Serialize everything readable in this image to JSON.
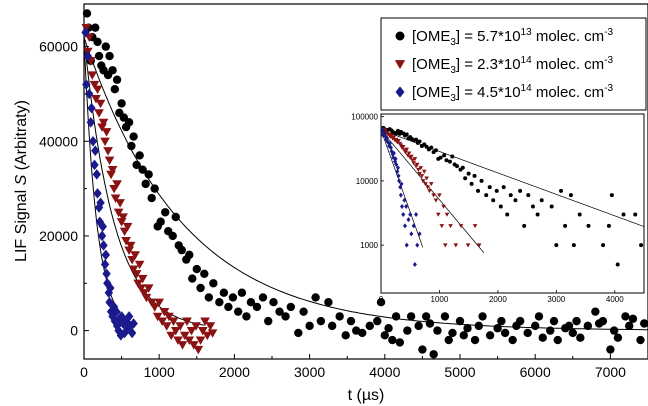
{
  "chart_data": {
    "type": "scatter",
    "xlabel": "t (µs)",
    "ylabel_prefix": "LIF Signal ",
    "ylabel_var": "S",
    "ylabel_suffix": " (Arbitraty)",
    "xlim": [
      0,
      7500
    ],
    "ylim": [
      -6000,
      69000
    ],
    "xticks": [
      0,
      1000,
      2000,
      3000,
      4000,
      5000,
      6000,
      7000
    ],
    "yticks": [
      0,
      20000,
      40000,
      60000
    ],
    "legend_position": "top-right",
    "series": [
      {
        "name_main": "[OME",
        "name_sub": "3",
        "name_mid": "] = 5.7*10",
        "name_sup": "13",
        "name_unit": " molec. cm",
        "name_unit_sup": "-3",
        "marker": "circle",
        "color": "#000000",
        "fit": {
          "A": 62000,
          "tau": 1300,
          "xmax": 7500
        },
        "points": [
          [
            40,
            67000
          ],
          [
            60,
            64000
          ],
          [
            90,
            57000
          ],
          [
            110,
            62000
          ],
          [
            150,
            64000
          ],
          [
            180,
            61000
          ],
          [
            200,
            58000
          ],
          [
            230,
            56000
          ],
          [
            260,
            55000
          ],
          [
            290,
            60000
          ],
          [
            320,
            54000
          ],
          [
            340,
            58000
          ],
          [
            380,
            55000
          ],
          [
            410,
            51000
          ],
          [
            440,
            53000
          ],
          [
            470,
            46000
          ],
          [
            500,
            48000
          ],
          [
            530,
            45000
          ],
          [
            560,
            43000
          ],
          [
            600,
            44000
          ],
          [
            630,
            39000
          ],
          [
            660,
            41000
          ],
          [
            700,
            35000
          ],
          [
            740,
            37000
          ],
          [
            780,
            34000
          ],
          [
            820,
            31000
          ],
          [
            860,
            33000
          ],
          [
            900,
            28000
          ],
          [
            940,
            30000
          ],
          [
            980,
            22000
          ],
          [
            1020,
            23000
          ],
          [
            1080,
            25000
          ],
          [
            1120,
            21000
          ],
          [
            1180,
            20000
          ],
          [
            1220,
            24000
          ],
          [
            1260,
            18000
          ],
          [
            1300,
            17000
          ],
          [
            1360,
            15000
          ],
          [
            1400,
            16000
          ],
          [
            1440,
            11000
          ],
          [
            1500,
            13000
          ],
          [
            1550,
            9000
          ],
          [
            1600,
            12000
          ],
          [
            1660,
            7000
          ],
          [
            1720,
            10000
          ],
          [
            1800,
            6000
          ],
          [
            1860,
            8000
          ],
          [
            1920,
            5000
          ],
          [
            1980,
            7000
          ],
          [
            2050,
            4000
          ],
          [
            2100,
            8000
          ],
          [
            2160,
            3000
          ],
          [
            2220,
            6000
          ],
          [
            2300,
            5000
          ],
          [
            2380,
            7000
          ],
          [
            2450,
            2000
          ],
          [
            2520,
            6000
          ],
          [
            2600,
            4000
          ],
          [
            2680,
            3000
          ],
          [
            2750,
            5000
          ],
          [
            2850,
            -500
          ],
          [
            2920,
            4000
          ],
          [
            3000,
            1000
          ],
          [
            3080,
            7000
          ],
          [
            3150,
            2000
          ],
          [
            3250,
            6000
          ],
          [
            3300,
            1000
          ],
          [
            3400,
            3000
          ],
          [
            3480,
            -1000
          ],
          [
            3550,
            2000
          ],
          [
            3620,
            0
          ],
          [
            3700,
            -500
          ],
          [
            3800,
            1000
          ],
          [
            3900,
            2000
          ],
          [
            3950,
            6000
          ],
          [
            4000,
            -1000
          ],
          [
            4050,
            500
          ],
          [
            4100,
            -2000
          ],
          [
            4150,
            3000
          ],
          [
            4200,
            -2500
          ],
          [
            4300,
            0
          ],
          [
            4350,
            3000
          ],
          [
            4450,
            1000
          ],
          [
            4500,
            -4000
          ],
          [
            4550,
            3000
          ],
          [
            4600,
            1500
          ],
          [
            4650,
            -5000
          ],
          [
            4700,
            0
          ],
          [
            4800,
            3000
          ],
          [
            4850,
            -2000
          ],
          [
            4900,
            -500
          ],
          [
            5000,
            2000
          ],
          [
            5050,
            -1000
          ],
          [
            5100,
            500
          ],
          [
            5200,
            -2000
          ],
          [
            5250,
            1000
          ],
          [
            5300,
            3000
          ],
          [
            5400,
            -1000
          ],
          [
            5500,
            500
          ],
          [
            5550,
            2000
          ],
          [
            5600,
            -500
          ],
          [
            5700,
            -2000
          ],
          [
            5750,
            1000
          ],
          [
            5800,
            2000
          ],
          [
            5900,
            -500
          ],
          [
            6000,
            1000
          ],
          [
            6050,
            3000
          ],
          [
            6100,
            -1500
          ],
          [
            6200,
            0
          ],
          [
            6250,
            2000
          ],
          [
            6300,
            -2000
          ],
          [
            6400,
            500
          ],
          [
            6450,
            1000
          ],
          [
            6500,
            -500
          ],
          [
            6550,
            2000
          ],
          [
            6600,
            -1500
          ],
          [
            6700,
            1000
          ],
          [
            6800,
            4000
          ],
          [
            6850,
            1500
          ],
          [
            6900,
            2000
          ],
          [
            7000,
            -4000
          ],
          [
            7050,
            0
          ],
          [
            7100,
            -1500
          ],
          [
            7200,
            3000
          ],
          [
            7250,
            1000
          ],
          [
            7300,
            2500
          ],
          [
            7400,
            -2000
          ],
          [
            7450,
            1500
          ]
        ]
      },
      {
        "name_main": "[OME",
        "name_sub": "3",
        "name_mid": "] = 2.3*10",
        "name_sup": "14",
        "name_unit": " molec. cm",
        "name_unit_sup": "-3",
        "marker": "triangle-down",
        "color": "#8b1212",
        "fit": {
          "A": 62000,
          "tau": 400,
          "xmax": 1600
        },
        "points": [
          [
            30,
            64000
          ],
          [
            50,
            59000
          ],
          [
            70,
            62000
          ],
          [
            90,
            57000
          ],
          [
            110,
            54000
          ],
          [
            140,
            52000
          ],
          [
            160,
            49000
          ],
          [
            180,
            51000
          ],
          [
            200,
            46000
          ],
          [
            220,
            48000
          ],
          [
            240,
            43000
          ],
          [
            260,
            44000
          ],
          [
            280,
            40000
          ],
          [
            300,
            42000
          ],
          [
            320,
            38000
          ],
          [
            340,
            36000
          ],
          [
            360,
            33000
          ],
          [
            380,
            34000
          ],
          [
            400,
            30000
          ],
          [
            420,
            28000
          ],
          [
            440,
            31000
          ],
          [
            460,
            25000
          ],
          [
            480,
            27000
          ],
          [
            500,
            23000
          ],
          [
            520,
            24000
          ],
          [
            540,
            21000
          ],
          [
            560,
            19000
          ],
          [
            580,
            22000
          ],
          [
            600,
            17000
          ],
          [
            620,
            18000
          ],
          [
            640,
            15000
          ],
          [
            660,
            13000
          ],
          [
            680,
            16000
          ],
          [
            700,
            12000
          ],
          [
            720,
            10000
          ],
          [
            740,
            14000
          ],
          [
            760,
            9000
          ],
          [
            780,
            11000
          ],
          [
            800,
            8000
          ],
          [
            830,
            7000
          ],
          [
            860,
            9000
          ],
          [
            900,
            6000
          ],
          [
            940,
            5000
          ],
          [
            980,
            3000
          ],
          [
            1000,
            6000
          ],
          [
            1040,
            2000
          ],
          [
            1070,
            4000
          ],
          [
            1100,
            1000
          ],
          [
            1130,
            3000
          ],
          [
            1160,
            -1000
          ],
          [
            1190,
            2000
          ],
          [
            1220,
            0
          ],
          [
            1250,
            -2000
          ],
          [
            1280,
            1000
          ],
          [
            1310,
            -3000
          ],
          [
            1340,
            -1000
          ],
          [
            1370,
            2000
          ],
          [
            1400,
            -2000
          ],
          [
            1430,
            0
          ],
          [
            1460,
            -3000
          ],
          [
            1490,
            1000
          ],
          [
            1520,
            -4000
          ],
          [
            1550,
            -2000
          ],
          [
            1580,
            0
          ],
          [
            1610,
            2000
          ],
          [
            1640,
            -1000
          ],
          [
            1680,
            1000
          ],
          [
            1710,
            -500
          ]
        ]
      },
      {
        "name_main": "[OME",
        "name_sub": "3",
        "name_mid": "] = 4.5*10",
        "name_sup": "14",
        "name_unit": " molec. cm",
        "name_unit_sup": "-3",
        "marker": "diamond",
        "color": "#1a1a8c",
        "fit": {
          "A": 62000,
          "tau": 170,
          "xmax": 650
        },
        "points": [
          [
            20,
            63000
          ],
          [
            30,
            52000
          ],
          [
            50,
            58000
          ],
          [
            70,
            50000
          ],
          [
            90,
            44000
          ],
          [
            100,
            47000
          ],
          [
            120,
            40000
          ],
          [
            140,
            35000
          ],
          [
            150,
            38000
          ],
          [
            170,
            33000
          ],
          [
            180,
            29000
          ],
          [
            200,
            26000
          ],
          [
            210,
            23000
          ],
          [
            220,
            27000
          ],
          [
            240,
            20000
          ],
          [
            250,
            22000
          ],
          [
            260,
            18000
          ],
          [
            280,
            14000
          ],
          [
            290,
            16000
          ],
          [
            300,
            12000
          ],
          [
            310,
            10000
          ],
          [
            330,
            8000
          ],
          [
            340,
            6000
          ],
          [
            350,
            9000
          ],
          [
            360,
            4000
          ],
          [
            380,
            3000
          ],
          [
            400,
            5000
          ],
          [
            410,
            2000
          ],
          [
            430,
            4000
          ],
          [
            440,
            1000
          ],
          [
            460,
            0
          ],
          [
            470,
            2500
          ],
          [
            490,
            -1000
          ],
          [
            500,
            3000
          ],
          [
            520,
            1500
          ],
          [
            540,
            -500
          ],
          [
            560,
            2000
          ],
          [
            580,
            500
          ],
          [
            600,
            3000
          ],
          [
            620,
            1000
          ],
          [
            640,
            -500
          ],
          [
            660,
            1500
          ]
        ]
      }
    ],
    "inset": {
      "scale": "log",
      "xlim": [
        0,
        4500
      ],
      "ylim": [
        180,
        110000
      ],
      "xticks": [
        0,
        1000,
        2000,
        3000,
        4000
      ],
      "yticks": [
        1000,
        10000,
        100000
      ],
      "ytick_labels": [
        "1000",
        "10000",
        "100000"
      ]
    }
  }
}
